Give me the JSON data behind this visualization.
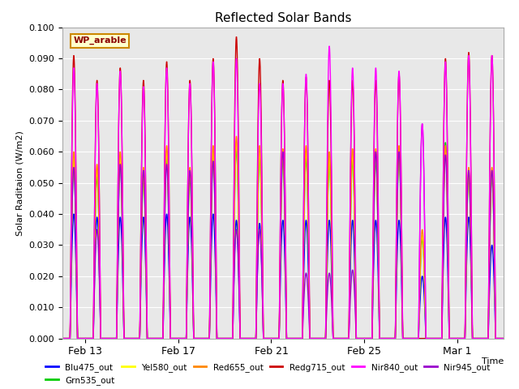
{
  "title": "Reflected Solar Bands",
  "xlabel": "Time",
  "ylabel": "Solar Raditaion (W/m2)",
  "ylim": [
    0,
    0.1
  ],
  "yticks": [
    0.0,
    0.01,
    0.02,
    0.03,
    0.04,
    0.05,
    0.06,
    0.07,
    0.08,
    0.09,
    0.1
  ],
  "legend_label": "WP_arable",
  "legend_box_color": "#ffffcc",
  "legend_box_edge": "#cc8800",
  "fig_bg_color": "#ffffff",
  "plot_bg_color": "#e8e8e8",
  "grid_color": "#ffffff",
  "series": {
    "Blu475_out": {
      "color": "#0000ff",
      "lw": 1.0
    },
    "Grn535_out": {
      "color": "#00cc00",
      "lw": 1.0
    },
    "Yel580_out": {
      "color": "#ffff00",
      "lw": 1.0
    },
    "Red655_out": {
      "color": "#ff8800",
      "lw": 1.0
    },
    "Redg715_out": {
      "color": "#cc0000",
      "lw": 1.0
    },
    "Nir840_out": {
      "color": "#ff00ff",
      "lw": 1.0
    },
    "Nir945_out": {
      "color": "#9900cc",
      "lw": 1.0
    }
  },
  "xtick_labels": [
    "Feb 13",
    "Feb 17",
    "Feb 21",
    "Feb 25",
    "Mar 1"
  ],
  "n_days": 19,
  "samples_per_day": 96
}
